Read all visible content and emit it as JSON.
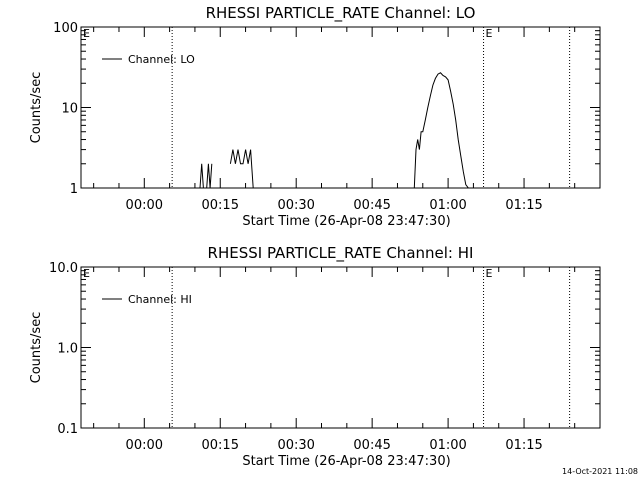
{
  "timestamp": "14-Oct-2021 11:08",
  "chart_data": [
    {
      "type": "line",
      "title": "RHESSI PARTICLE_RATE Channel: LO",
      "xlabel": "Start Time (26-Apr-08 23:47:30)",
      "ylabel": "Counts/sec",
      "y_scale": "log",
      "xlim": [
        "23:47:30",
        "01:30:00"
      ],
      "ylim": [
        1,
        100
      ],
      "x_ticks": [
        "00:00",
        "00:15",
        "00:30",
        "00:45",
        "01:00",
        "01:15"
      ],
      "y_ticks": [
        "1",
        "10",
        "100"
      ],
      "legend": "top-left",
      "grid": false,
      "series": [
        {
          "name": "Channel: LO",
          "color": "#000000",
          "x": [
            "00:11",
            "00:11:20",
            "00:11:40",
            "00:12:20",
            "00:12:40",
            "00:13:00",
            "00:13:20",
            "00:17:00",
            "00:17:30",
            "00:18:00",
            "00:18:30",
            "00:19:00",
            "00:19:30",
            "00:20:00",
            "00:20:30",
            "00:21:00",
            "00:21:30",
            "00:22:00",
            "00:53:20",
            "00:53:40",
            "00:54:00",
            "00:54:20",
            "00:54:40",
            "00:55:00",
            "00:55:30",
            "00:56:00",
            "00:56:30",
            "00:57:00",
            "00:57:30",
            "00:58:00",
            "00:58:30",
            "00:59:00",
            "00:59:30",
            "01:00:00",
            "01:00:30",
            "01:01:00",
            "01:01:30",
            "01:02:00",
            "01:02:30",
            "01:03:00",
            "01:03:30",
            "01:04:00"
          ],
          "values": [
            1,
            2,
            1,
            1,
            2,
            1,
            2,
            2,
            3,
            2,
            3,
            2,
            2,
            3,
            2,
            3,
            1,
            1,
            1,
            3,
            4,
            3,
            5,
            5,
            7,
            10,
            14,
            19,
            23,
            26,
            27,
            25,
            24,
            22,
            16,
            11,
            7,
            4,
            2.5,
            1.6,
            1.1,
            1
          ]
        }
      ],
      "annotations": [
        {
          "text": "E",
          "x": "23:47:30"
        },
        {
          "text": "E",
          "x": "01:07:00"
        }
      ],
      "vertical_lines": [
        "00:05:30",
        "01:07:00",
        "01:24:00"
      ]
    },
    {
      "type": "line",
      "title": "RHESSI PARTICLE_RATE Channel: HI",
      "xlabel": "Start Time (26-Apr-08 23:47:30)",
      "ylabel": "Counts/sec",
      "y_scale": "log",
      "xlim": [
        "23:47:30",
        "01:30:00"
      ],
      "ylim": [
        0.1,
        10
      ],
      "x_ticks": [
        "00:00",
        "00:15",
        "00:30",
        "00:45",
        "01:00",
        "01:15"
      ],
      "y_ticks": [
        "0.1",
        "1.0",
        "10.0"
      ],
      "legend": "top-left",
      "grid": false,
      "series": [
        {
          "name": "Channel: HI",
          "color": "#000000",
          "x": [],
          "values": []
        }
      ],
      "annotations": [
        {
          "text": "E",
          "x": "23:47:30"
        },
        {
          "text": "E",
          "x": "01:07:00"
        }
      ],
      "vertical_lines": [
        "00:05:30",
        "01:07:00",
        "01:24:00"
      ]
    }
  ]
}
